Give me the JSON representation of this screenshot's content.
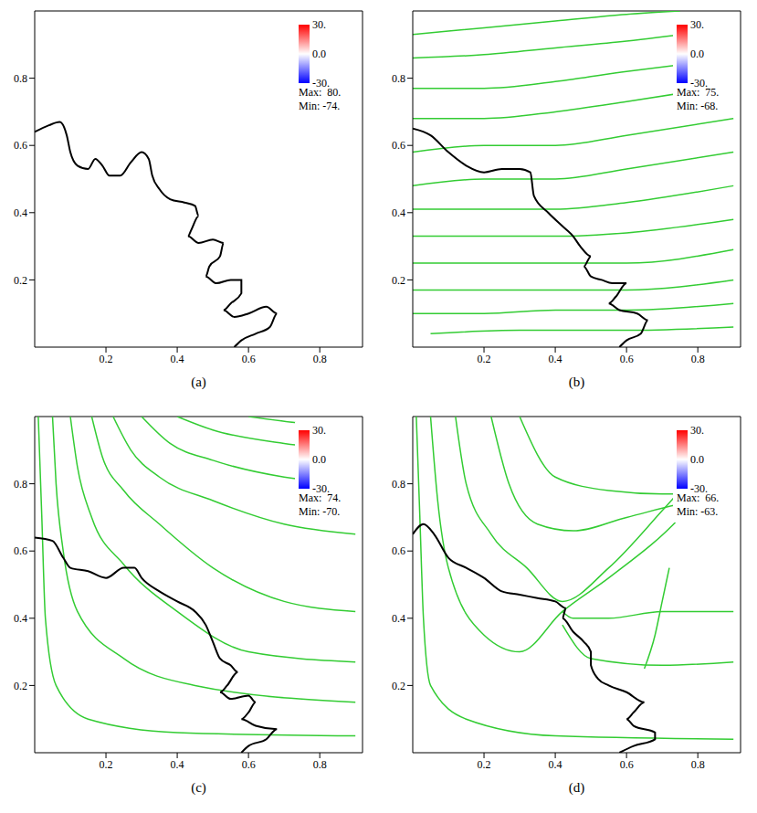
{
  "chart_data": [
    {
      "type": "line",
      "title": "(a)",
      "xlim": [
        0,
        0.92
      ],
      "ylim": [
        0,
        1
      ],
      "xticks": [
        0.2,
        0.4,
        0.6,
        0.8
      ],
      "yticks": [
        0.2,
        0.4,
        0.6,
        0.8
      ],
      "colorbar": {
        "range": [
          -30,
          30
        ],
        "colors": [
          "#0000ff",
          "#ffffff",
          "#ff0000"
        ],
        "ticks": [
          {
            "value": 30,
            "label": "30."
          },
          {
            "value": 0,
            "label": "0.0"
          },
          {
            "value": -30,
            "label": "-30."
          }
        ]
      },
      "max": {
        "value": 80,
        "label": "Max:  80."
      },
      "min": {
        "value": -74,
        "label": "Min: -74."
      },
      "series": [
        {
          "color": "#000000",
          "x": [
            0,
            0.04,
            0.07,
            0.09,
            0.1,
            0.12,
            0.15,
            0.17,
            0.19,
            0.21,
            0.24,
            0.27,
            0.3,
            0.32,
            0.33,
            0.35,
            0.38,
            0.42,
            0.45,
            0.46,
            0.44,
            0.43,
            0.46,
            0.5,
            0.53,
            0.52,
            0.49,
            0.48,
            0.51,
            0.55,
            0.58,
            0.58,
            0.55,
            0.53,
            0.56,
            0.6,
            0.65,
            0.68,
            0.66,
            0.62,
            0.58,
            0.56
          ],
          "values": [
            0.64,
            0.66,
            0.67,
            0.63,
            0.58,
            0.54,
            0.53,
            0.56,
            0.54,
            0.51,
            0.51,
            0.55,
            0.58,
            0.56,
            0.51,
            0.47,
            0.44,
            0.43,
            0.42,
            0.39,
            0.35,
            0.33,
            0.31,
            0.32,
            0.31,
            0.27,
            0.24,
            0.21,
            0.19,
            0.2,
            0.2,
            0.16,
            0.13,
            0.11,
            0.09,
            0.1,
            0.12,
            0.1,
            0.06,
            0.04,
            0.02,
            0
          ]
        }
      ]
    },
    {
      "type": "line",
      "title": "(b)",
      "xlim": [
        0,
        0.92
      ],
      "ylim": [
        0,
        1
      ],
      "xticks": [
        0.2,
        0.4,
        0.6,
        0.8
      ],
      "yticks": [
        0.2,
        0.4,
        0.6,
        0.8
      ],
      "colorbar": {
        "range": [
          -30,
          30
        ],
        "colors": [
          "#0000ff",
          "#ffffff",
          "#ff0000"
        ],
        "ticks": [
          {
            "value": 30,
            "label": "30."
          },
          {
            "value": 0,
            "label": "0.0"
          },
          {
            "value": -30,
            "label": "-30."
          }
        ]
      },
      "max": {
        "value": 75,
        "label": "Max:  75."
      },
      "min": {
        "value": -68,
        "label": "Min: -68."
      },
      "series": [
        {
          "color": "#33cc33",
          "x": [
            0,
            0.2,
            0.4,
            0.6,
            0.75
          ],
          "values": [
            0.93,
            0.95,
            0.97,
            0.99,
            1.0
          ]
        },
        {
          "color": "#33cc33",
          "x": [
            0,
            0.2,
            0.4,
            0.6,
            0.9
          ],
          "values": [
            0.86,
            0.87,
            0.89,
            0.91,
            0.95
          ]
        },
        {
          "color": "#33cc33",
          "x": [
            0,
            0.2,
            0.4,
            0.6,
            0.9
          ],
          "values": [
            0.77,
            0.77,
            0.79,
            0.82,
            0.86
          ]
        },
        {
          "color": "#33cc33",
          "x": [
            0,
            0.2,
            0.4,
            0.6,
            0.9
          ],
          "values": [
            0.68,
            0.68,
            0.7,
            0.73,
            0.78
          ]
        },
        {
          "color": "#33cc33",
          "x": [
            0,
            0.2,
            0.4,
            0.6,
            0.9
          ],
          "values": [
            0.58,
            0.6,
            0.6,
            0.63,
            0.68
          ]
        },
        {
          "color": "#33cc33",
          "x": [
            0,
            0.2,
            0.4,
            0.6,
            0.9
          ],
          "values": [
            0.48,
            0.5,
            0.5,
            0.53,
            0.58
          ]
        },
        {
          "color": "#33cc33",
          "x": [
            0,
            0.2,
            0.4,
            0.6,
            0.9
          ],
          "values": [
            0.41,
            0.41,
            0.41,
            0.43,
            0.48
          ]
        },
        {
          "color": "#33cc33",
          "x": [
            0,
            0.2,
            0.4,
            0.6,
            0.9
          ],
          "values": [
            0.33,
            0.33,
            0.33,
            0.34,
            0.38
          ]
        },
        {
          "color": "#33cc33",
          "x": [
            0,
            0.2,
            0.4,
            0.6,
            0.9
          ],
          "values": [
            0.25,
            0.25,
            0.25,
            0.25,
            0.29
          ]
        },
        {
          "color": "#33cc33",
          "x": [
            0,
            0.2,
            0.4,
            0.6,
            0.9
          ],
          "values": [
            0.17,
            0.17,
            0.17,
            0.17,
            0.2
          ]
        },
        {
          "color": "#33cc33",
          "x": [
            0,
            0.2,
            0.4,
            0.6,
            0.9
          ],
          "values": [
            0.1,
            0.1,
            0.11,
            0.11,
            0.13
          ]
        },
        {
          "color": "#33cc33",
          "x": [
            0.05,
            0.3,
            0.6,
            0.9
          ],
          "values": [
            0.04,
            0.05,
            0.05,
            0.06
          ]
        },
        {
          "color": "#000000",
          "x": [
            0,
            0.05,
            0.1,
            0.15,
            0.2,
            0.25,
            0.3,
            0.33,
            0.34,
            0.38,
            0.42,
            0.45,
            0.47,
            0.5,
            0.48,
            0.5,
            0.53,
            0.56,
            0.6,
            0.57,
            0.55,
            0.58,
            0.63,
            0.66,
            0.64,
            0.6,
            0.58
          ],
          "values": [
            0.65,
            0.63,
            0.58,
            0.54,
            0.52,
            0.53,
            0.53,
            0.52,
            0.45,
            0.4,
            0.36,
            0.33,
            0.3,
            0.27,
            0.24,
            0.21,
            0.2,
            0.19,
            0.19,
            0.15,
            0.13,
            0.11,
            0.1,
            0.08,
            0.04,
            0.02,
            0
          ]
        }
      ]
    },
    {
      "type": "line",
      "title": "(c)",
      "xlim": [
        0,
        0.92
      ],
      "ylim": [
        0,
        1
      ],
      "xticks": [
        0.2,
        0.4,
        0.6,
        0.8
      ],
      "yticks": [
        0.2,
        0.4,
        0.6,
        0.8
      ],
      "colorbar": {
        "range": [
          -30,
          30
        ],
        "colors": [
          "#0000ff",
          "#ffffff",
          "#ff0000"
        ],
        "ticks": [
          {
            "value": 30,
            "label": "30."
          },
          {
            "value": 0,
            "label": "0.0"
          },
          {
            "value": -30,
            "label": "-30."
          }
        ]
      },
      "max": {
        "value": 74,
        "label": "Max:  74."
      },
      "min": {
        "value": -70,
        "label": "Min: -70."
      },
      "series": [
        {
          "color": "#33cc33",
          "x": [
            0.01,
            0.02,
            0.03,
            0.06,
            0.15,
            0.4,
            0.9
          ],
          "values": [
            1.0,
            0.7,
            0.4,
            0.2,
            0.1,
            0.06,
            0.05
          ]
        },
        {
          "color": "#33cc33",
          "x": [
            0.05,
            0.06,
            0.08,
            0.12,
            0.25,
            0.45,
            0.9
          ],
          "values": [
            1.0,
            0.8,
            0.6,
            0.42,
            0.28,
            0.2,
            0.15
          ]
        },
        {
          "color": "#33cc33",
          "x": [
            0.1,
            0.12,
            0.16,
            0.25,
            0.4,
            0.6,
            0.9
          ],
          "values": [
            1.0,
            0.85,
            0.7,
            0.56,
            0.42,
            0.3,
            0.27
          ]
        },
        {
          "color": "#33cc33",
          "x": [
            0.16,
            0.19,
            0.25,
            0.35,
            0.5,
            0.7,
            0.9
          ],
          "values": [
            1.0,
            0.88,
            0.78,
            0.68,
            0.55,
            0.45,
            0.42
          ]
        },
        {
          "color": "#33cc33",
          "x": [
            0.22,
            0.27,
            0.35,
            0.5,
            0.7,
            0.9
          ],
          "values": [
            1.0,
            0.9,
            0.82,
            0.75,
            0.68,
            0.65
          ]
        },
        {
          "color": "#33cc33",
          "x": [
            0.3,
            0.38,
            0.5,
            0.7,
            0.9
          ],
          "values": [
            1.0,
            0.92,
            0.87,
            0.82,
            0.8
          ]
        },
        {
          "color": "#33cc33",
          "x": [
            0.4,
            0.5,
            0.7,
            0.9
          ],
          "values": [
            1.0,
            0.96,
            0.92,
            0.9
          ]
        },
        {
          "color": "#33cc33",
          "x": [
            0.6,
            0.75,
            0.9
          ],
          "values": [
            1.0,
            0.98,
            0.97
          ]
        },
        {
          "color": "#000000",
          "x": [
            0,
            0.05,
            0.08,
            0.1,
            0.15,
            0.2,
            0.25,
            0.28,
            0.3,
            0.35,
            0.4,
            0.45,
            0.48,
            0.5,
            0.52,
            0.55,
            0.57,
            0.54,
            0.52,
            0.55,
            0.6,
            0.62,
            0.6,
            0.58,
            0.62,
            0.68,
            0.65,
            0.6,
            0.58
          ],
          "values": [
            0.64,
            0.63,
            0.58,
            0.55,
            0.54,
            0.52,
            0.55,
            0.55,
            0.52,
            0.48,
            0.45,
            0.42,
            0.38,
            0.33,
            0.28,
            0.26,
            0.24,
            0.2,
            0.18,
            0.16,
            0.17,
            0.15,
            0.12,
            0.1,
            0.08,
            0.07,
            0.04,
            0.02,
            0
          ]
        }
      ]
    },
    {
      "type": "line",
      "title": "(d)",
      "xlim": [
        0,
        0.92
      ],
      "ylim": [
        0,
        1
      ],
      "xticks": [
        0.2,
        0.4,
        0.6,
        0.8
      ],
      "yticks": [
        0.2,
        0.4,
        0.6,
        0.8
      ],
      "colorbar": {
        "range": [
          -30,
          30
        ],
        "colors": [
          "#0000ff",
          "#ffffff",
          "#ff0000"
        ],
        "ticks": [
          {
            "value": 30,
            "label": "30."
          },
          {
            "value": 0,
            "label": "0.0"
          },
          {
            "value": -30,
            "label": "-30."
          }
        ]
      },
      "max": {
        "value": 66,
        "label": "Max:  66."
      },
      "min": {
        "value": -63,
        "label": "Min: -63."
      },
      "series": [
        {
          "color": "#33cc33",
          "x": [
            0.01,
            0.02,
            0.03,
            0.05,
            0.15,
            0.4,
            0.9
          ],
          "values": [
            1.0,
            0.7,
            0.4,
            0.2,
            0.1,
            0.05,
            0.04
          ]
        },
        {
          "color": "#33cc33",
          "x": [
            0.05,
            0.07,
            0.1,
            0.2,
            0.3,
            0.42,
            0.55,
            0.75,
            0.9
          ],
          "values": [
            1.0,
            0.75,
            0.55,
            0.35,
            0.3,
            0.42,
            0.52,
            0.7,
            0.9
          ]
        },
        {
          "color": "#33cc33",
          "x": [
            0.12,
            0.15,
            0.22,
            0.32,
            0.42,
            0.55,
            0.7,
            0.85
          ],
          "values": [
            1.0,
            0.8,
            0.65,
            0.55,
            0.45,
            0.55,
            0.72,
            0.9
          ]
        },
        {
          "color": "#33cc33",
          "x": [
            0.22,
            0.27,
            0.35,
            0.45,
            0.6,
            0.8,
            0.9
          ],
          "values": [
            1.0,
            0.8,
            0.68,
            0.66,
            0.7,
            0.75,
            0.76
          ]
        },
        {
          "color": "#33cc33",
          "x": [
            0.3,
            0.4,
            0.55,
            0.7,
            0.9
          ],
          "values": [
            1.0,
            0.82,
            0.78,
            0.77,
            0.77
          ]
        },
        {
          "color": "#33cc33",
          "x": [
            0.9,
            0.7,
            0.55,
            0.45,
            0.42
          ],
          "values": [
            0.42,
            0.42,
            0.4,
            0.4,
            0.42
          ]
        },
        {
          "color": "#33cc33",
          "x": [
            0.9,
            0.7,
            0.5,
            0.42
          ],
          "values": [
            0.27,
            0.26,
            0.28,
            0.38
          ]
        },
        {
          "color": "#33cc33",
          "x": [
            0.72,
            0.7,
            0.68,
            0.65
          ],
          "values": [
            0.55,
            0.45,
            0.35,
            0.25
          ]
        },
        {
          "color": "#000000",
          "x": [
            0,
            0.03,
            0.06,
            0.1,
            0.15,
            0.2,
            0.25,
            0.3,
            0.35,
            0.4,
            0.43,
            0.42,
            0.45,
            0.48,
            0.5,
            0.5,
            0.52,
            0.55,
            0.6,
            0.65,
            0.62,
            0.6,
            0.62,
            0.68,
            0.68,
            0.62,
            0.58
          ],
          "values": [
            0.65,
            0.68,
            0.65,
            0.58,
            0.55,
            0.52,
            0.48,
            0.47,
            0.46,
            0.45,
            0.43,
            0.4,
            0.36,
            0.33,
            0.3,
            0.26,
            0.22,
            0.2,
            0.18,
            0.15,
            0.12,
            0.1,
            0.08,
            0.06,
            0.04,
            0.02,
            0
          ]
        }
      ]
    }
  ]
}
